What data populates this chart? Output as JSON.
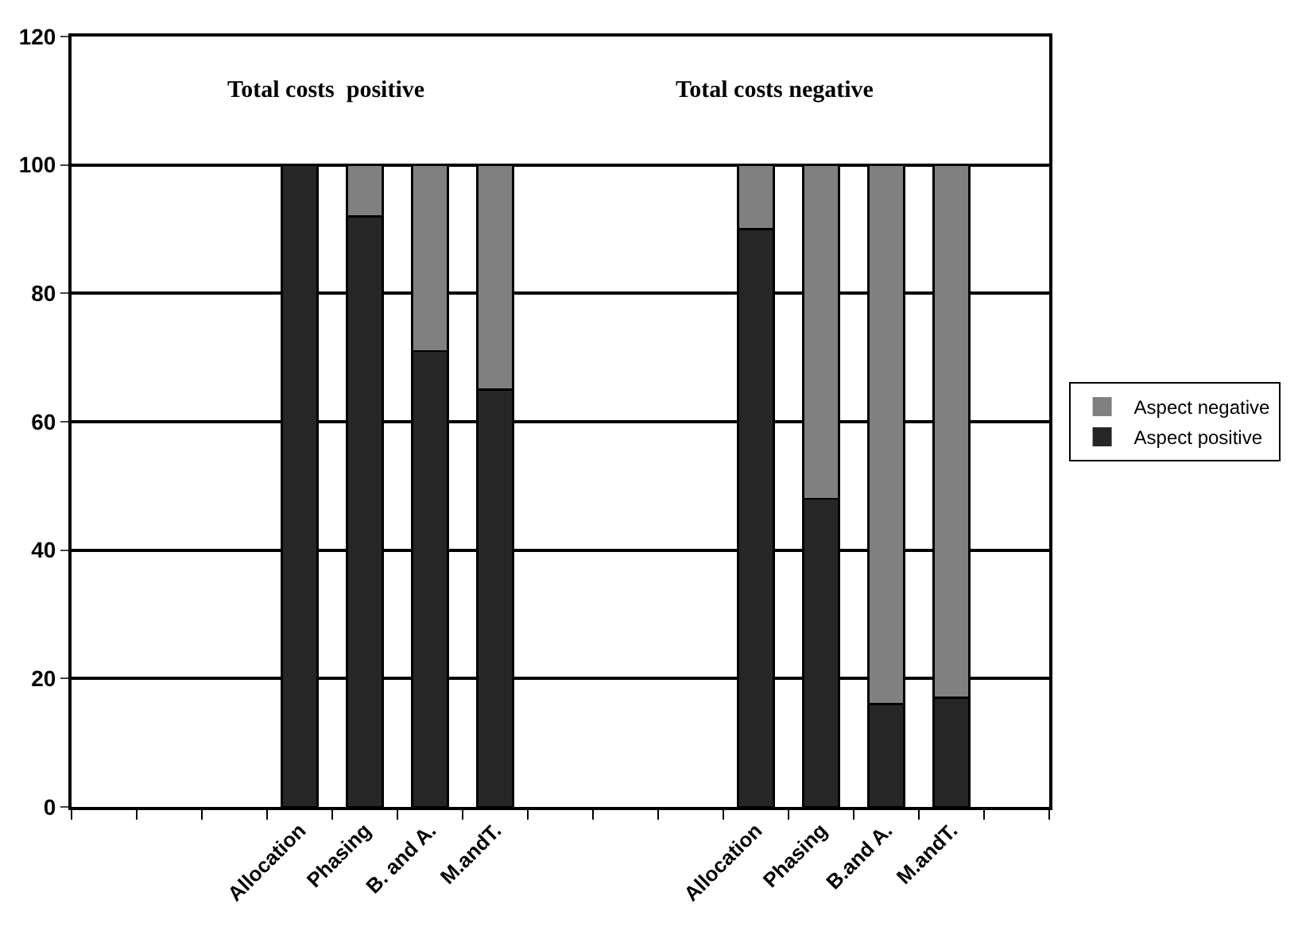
{
  "chart_data": {
    "type": "bar",
    "stacked": true,
    "categories": [
      null,
      null,
      null,
      "Allocation",
      "Phasing",
      "B. and A.",
      "M.andT.",
      null,
      null,
      null,
      "Allocation",
      "Phasing",
      "B.and A.",
      "M.andT.",
      null
    ],
    "series": [
      {
        "name": "Aspect positive",
        "color": "#262626",
        "values": [
          null,
          null,
          null,
          100,
          92,
          71,
          65,
          null,
          null,
          null,
          90,
          48,
          16,
          17,
          null
        ]
      },
      {
        "name": "Aspect negative",
        "color": "#808080",
        "values": [
          null,
          null,
          null,
          0,
          8,
          29,
          35,
          null,
          null,
          null,
          10,
          52,
          84,
          83,
          null
        ]
      }
    ],
    "ylim": [
      0,
      120
    ],
    "yticks": [
      0,
      20,
      40,
      60,
      80,
      100,
      120
    ],
    "grid": "y",
    "legend": "right",
    "annotations": [
      "Total costs  positive",
      "Total costs negative"
    ]
  }
}
